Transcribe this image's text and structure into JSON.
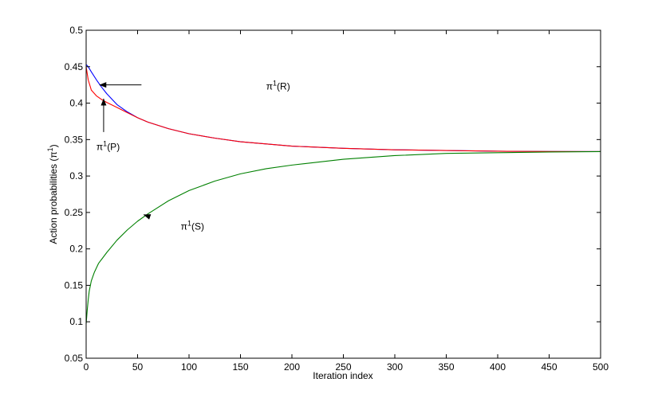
{
  "chart_data": {
    "type": "line",
    "xlabel": "Iteration index",
    "ylabel": "Action probabilities (π",
    "ylabel_sup": "1",
    "ylabel_close": ")",
    "xlim": [
      0,
      500
    ],
    "ylim": [
      0.05,
      0.5
    ],
    "xticks": [
      "0",
      "50",
      "100",
      "150",
      "200",
      "250",
      "300",
      "350",
      "400",
      "450",
      "500"
    ],
    "yticks": [
      "0.05",
      "0.1",
      "0.15",
      "0.2",
      "0.25",
      "0.3",
      "0.35",
      "0.4",
      "0.45",
      "0.5"
    ],
    "grid": false,
    "series": [
      {
        "label": "π¹(R)",
        "color": "#0000ff",
        "x": [
          0,
          2,
          5,
          10,
          15,
          20,
          30,
          40,
          50,
          60,
          80,
          100,
          125,
          150,
          175,
          200,
          250,
          300,
          350,
          400,
          450,
          500
        ],
        "y": [
          0.453,
          0.45,
          0.443,
          0.432,
          0.422,
          0.413,
          0.398,
          0.388,
          0.38,
          0.374,
          0.365,
          0.358,
          0.352,
          0.347,
          0.344,
          0.341,
          0.338,
          0.336,
          0.335,
          0.334,
          0.3337,
          0.3335
        ]
      },
      {
        "label": "π¹(P)",
        "color": "#ff0000",
        "x": [
          0,
          2,
          5,
          10,
          15,
          20,
          30,
          40,
          50,
          60,
          80,
          100,
          125,
          150,
          175,
          200,
          250,
          300,
          350,
          400,
          450,
          500
        ],
        "y": [
          0.45,
          0.432,
          0.418,
          0.41,
          0.405,
          0.401,
          0.394,
          0.387,
          0.38,
          0.374,
          0.365,
          0.358,
          0.352,
          0.347,
          0.344,
          0.341,
          0.338,
          0.336,
          0.335,
          0.334,
          0.3337,
          0.3335
        ]
      },
      {
        "label": "π¹(S)",
        "color": "#008000",
        "x": [
          0,
          1,
          2,
          3,
          5,
          8,
          12,
          20,
          30,
          40,
          50,
          60,
          80,
          100,
          125,
          150,
          175,
          200,
          250,
          300,
          350,
          400,
          450,
          500
        ],
        "y": [
          0.097,
          0.115,
          0.13,
          0.142,
          0.156,
          0.168,
          0.18,
          0.195,
          0.212,
          0.226,
          0.238,
          0.248,
          0.266,
          0.28,
          0.293,
          0.303,
          0.31,
          0.315,
          0.323,
          0.328,
          0.331,
          0.332,
          0.333,
          0.3335
        ]
      }
    ],
    "annotations": [
      {
        "main": "π",
        "sup": "1",
        "rest": "(R)",
        "tx": 175,
        "ty": 0.423,
        "ax": 15,
        "ay": 0.425,
        "tipx": 13,
        "tipy": 0.425
      },
      {
        "main": "π",
        "sup": "1",
        "rest": "(P)",
        "tx": 10,
        "ty": 0.34,
        "ax": 17,
        "ay": 0.404,
        "tipx": 17,
        "tipy": 0.406
      },
      {
        "main": "π",
        "sup": "1",
        "rest": "(S)",
        "tx": 92,
        "ty": 0.231,
        "ax": 58,
        "ay": 0.246,
        "tipx": 56,
        "tipy": 0.247
      }
    ]
  }
}
